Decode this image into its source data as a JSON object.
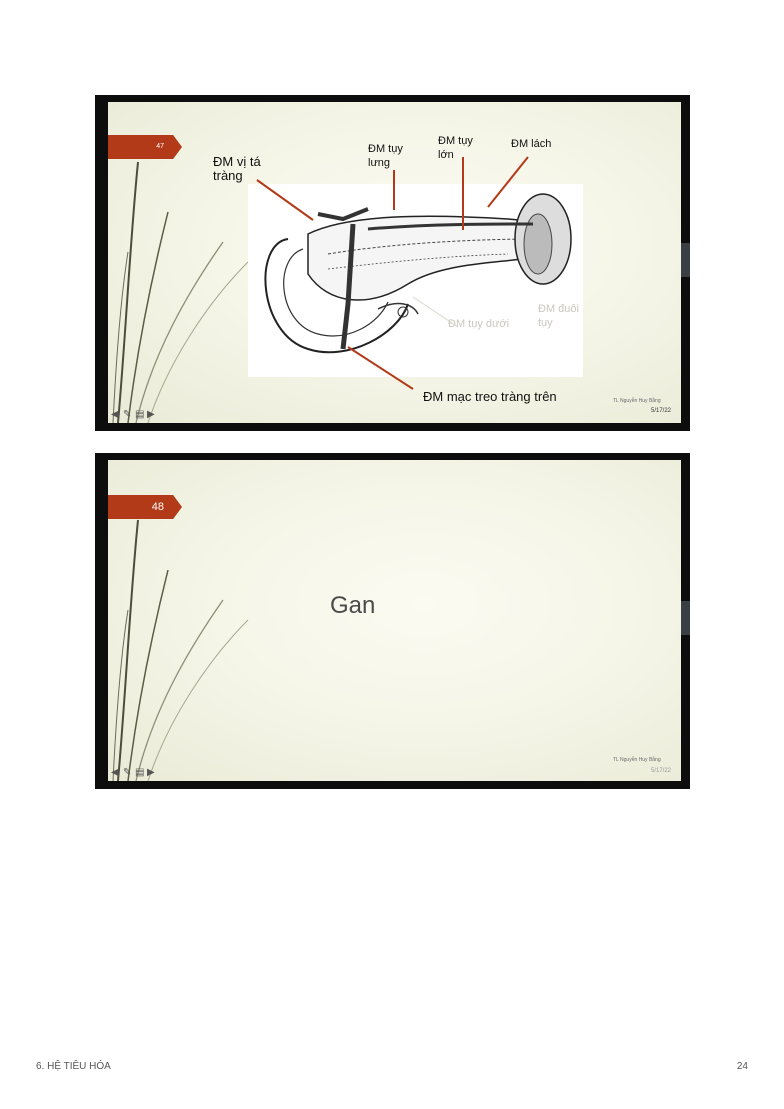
{
  "slide1": {
    "number": "47",
    "labels": {
      "vi_ta_trang": "ĐM vị tá tràng",
      "tuy_lung": "ĐM tụy lưng",
      "tuy_lon": "ĐM tụy lớn",
      "lach": "ĐM lách",
      "tuy_duoi": "ĐM tụy dưới",
      "duoi_tuy": "ĐM đuôi tụy",
      "mac_treo": "ĐM mạc treo tràng trên"
    },
    "credit": "TL Nguyễn Huy Bằng",
    "date": "5/17/22"
  },
  "slide2": {
    "number": "48",
    "title": "Gan",
    "credit": "TL Nguyễn Huy Bằng",
    "date": "5/17/22"
  },
  "footer": {
    "section": "6. HỆ TIÊU HÓA",
    "page": "24"
  },
  "icons": [
    "back-arrow-icon",
    "pen-icon",
    "menu-icon",
    "forward-arrow-icon"
  ]
}
